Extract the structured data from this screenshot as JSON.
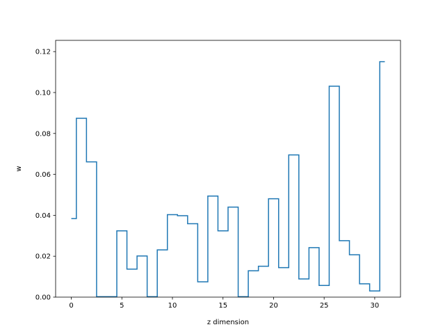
{
  "chart_data": {
    "type": "line",
    "drawstyle": "steps-mid",
    "title": "",
    "xlabel": "z dimension",
    "ylabel": "w",
    "xlim": [
      -1.55,
      32.55
    ],
    "ylim": [
      0.0,
      0.1255
    ],
    "xticks": [
      0,
      5,
      10,
      15,
      20,
      25,
      30
    ],
    "xtick_labels": [
      "0",
      "5",
      "10",
      "15",
      "20",
      "25",
      "30"
    ],
    "yticks": [
      0.0,
      0.02,
      0.04,
      0.06,
      0.08,
      0.1,
      0.12
    ],
    "ytick_labels": [
      "0.00",
      "0.02",
      "0.04",
      "0.06",
      "0.08",
      "0.10",
      "0.12"
    ],
    "grid": false,
    "legend": "none",
    "series": [
      {
        "color": "#1f77b4",
        "x": [
          0,
          1,
          2,
          3,
          4,
          5,
          6,
          7,
          8,
          9,
          10,
          11,
          12,
          13,
          14,
          15,
          16,
          17,
          18,
          19,
          20,
          21,
          22,
          23,
          24,
          25,
          26,
          27,
          28,
          29,
          30,
          31
        ],
        "values": [
          0.0384,
          0.0874,
          0.0661,
          0.0002,
          0.0002,
          0.0324,
          0.0137,
          0.0201,
          0.0002,
          0.0231,
          0.0403,
          0.0398,
          0.0359,
          0.0075,
          0.0494,
          0.0324,
          0.044,
          0.0002,
          0.0129,
          0.0151,
          0.0481,
          0.0144,
          0.0695,
          0.0089,
          0.0242,
          0.0057,
          0.1031,
          0.0276,
          0.0207,
          0.0065,
          0.003,
          0.1151
        ]
      }
    ]
  }
}
